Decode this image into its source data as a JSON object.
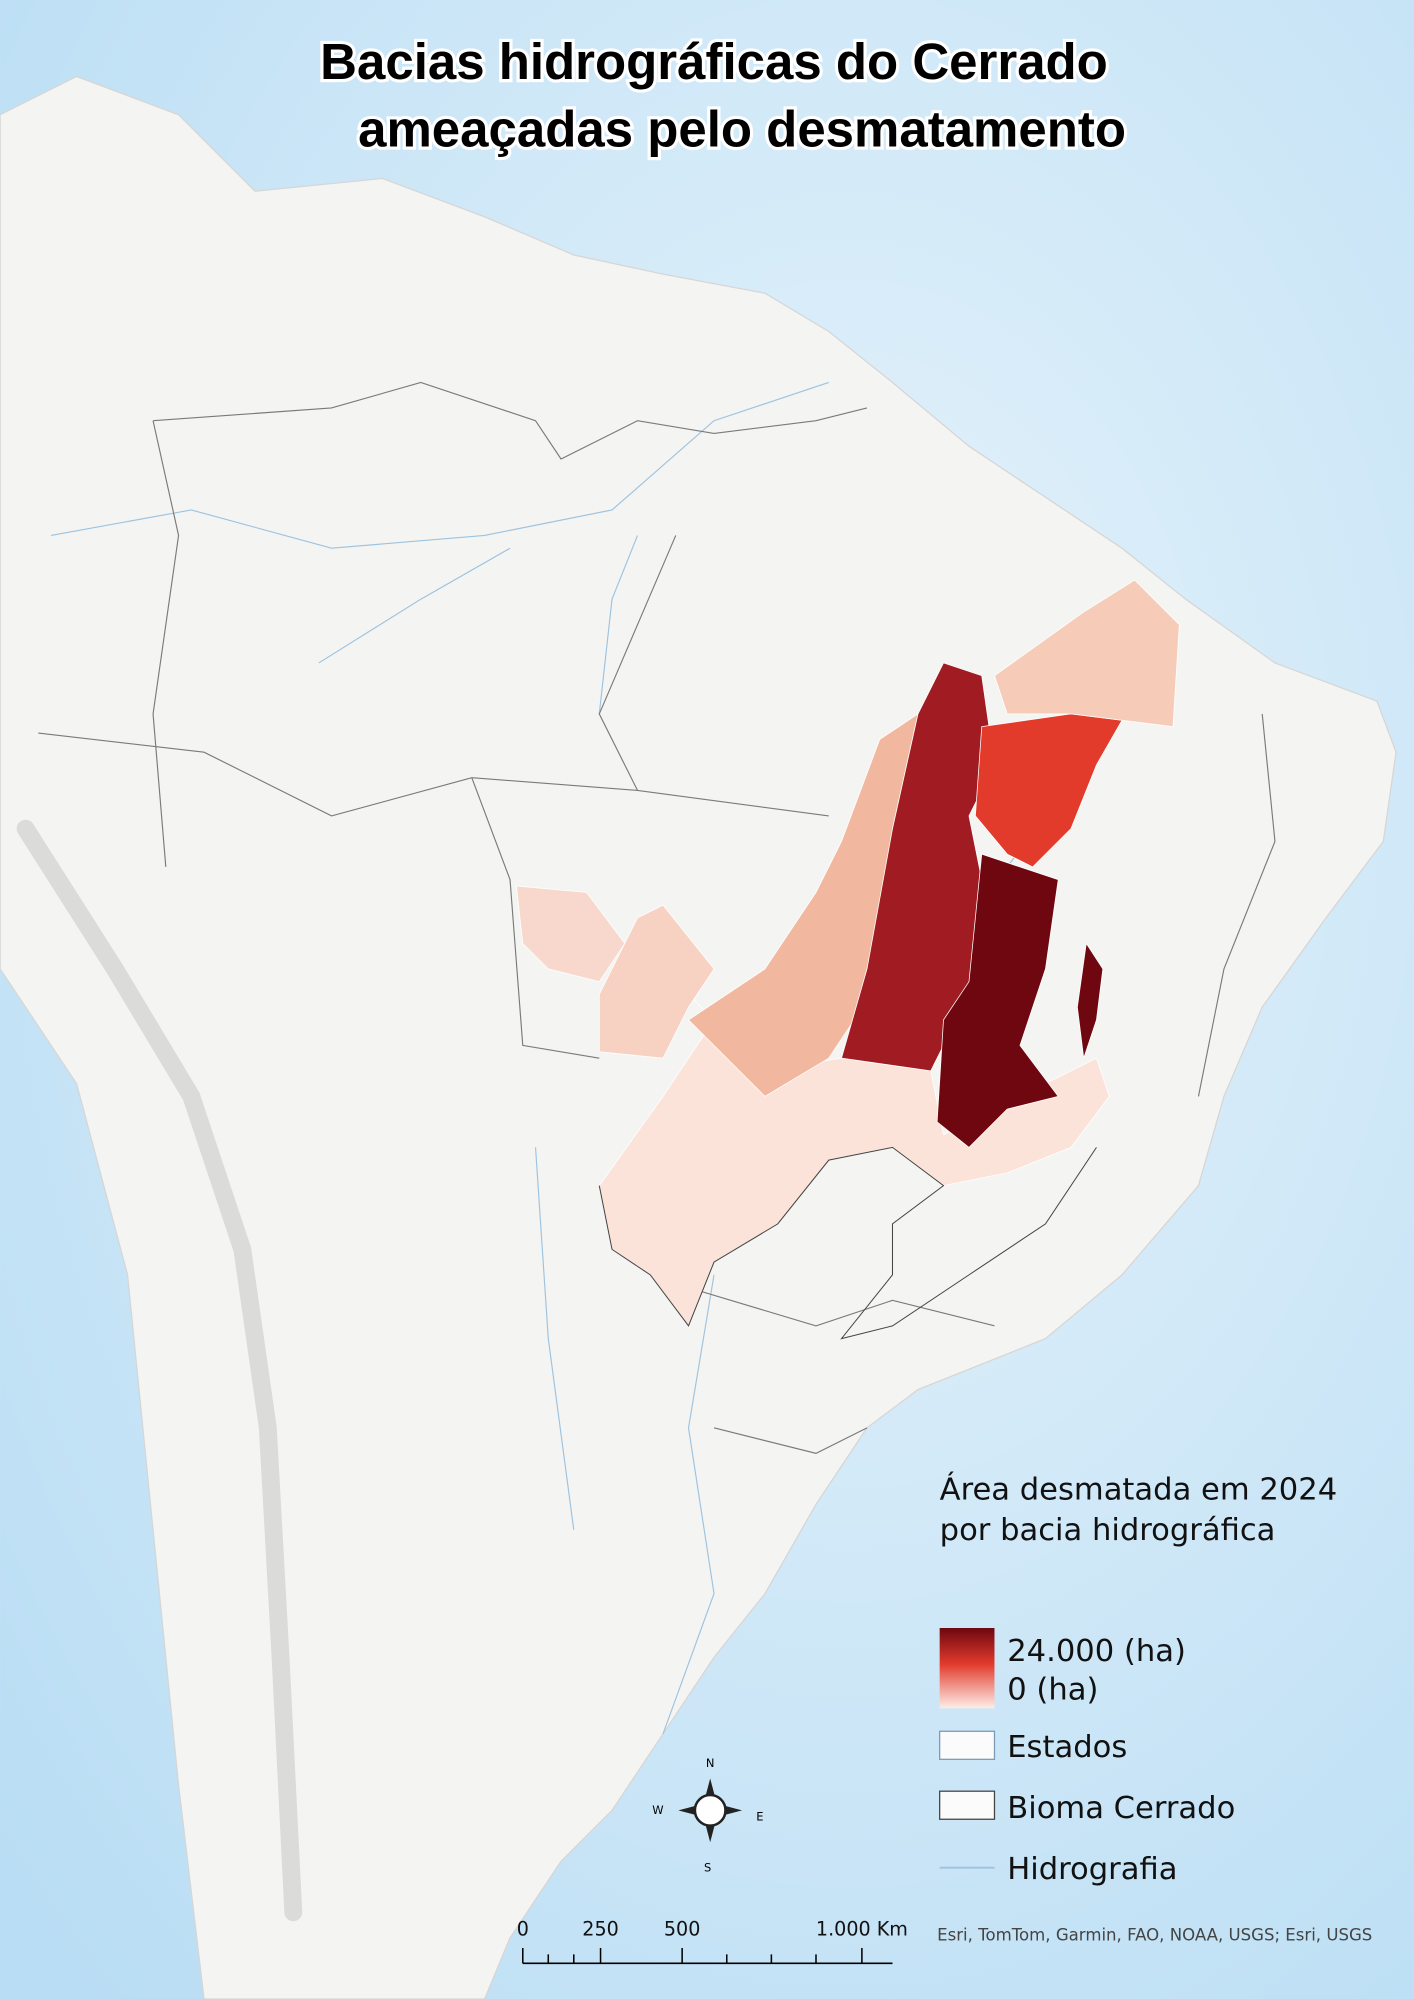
{
  "header": {
    "title_lines": [
      "Bacias hidrográficas do Cerrado",
      "ameaçadas pelo desmatamento"
    ]
  },
  "legend": {
    "title_lines": [
      "Área desmatada em 2024",
      "por bacia hidrográfica"
    ],
    "gradient_labels": [
      "24.000 (ha)",
      "0 (ha)"
    ],
    "items": [
      "Estados",
      "Bioma Cerrado",
      "Hidrografia"
    ]
  },
  "compass": {
    "north": "N",
    "west": "W",
    "east": "E",
    "south": "S"
  },
  "scale_bar": {
    "labels": [
      "0",
      "250",
      "500",
      "1.000 Km"
    ]
  },
  "credits": "Esri, TomTom, Garmin, FAO, NOAA, USGS; Esri, USGS"
}
